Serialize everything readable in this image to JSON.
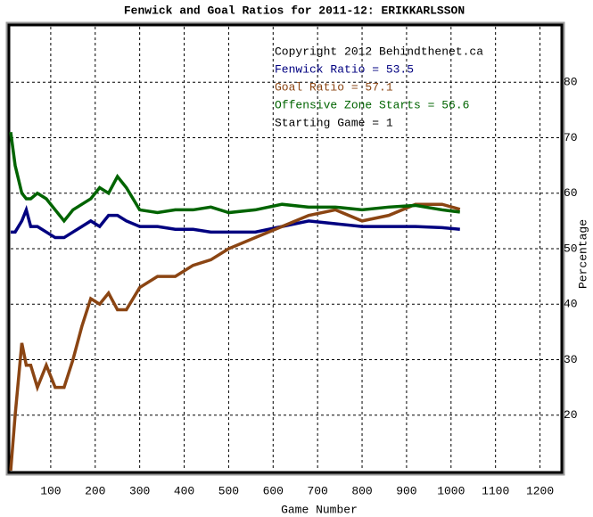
{
  "chart_data": {
    "type": "line",
    "title": "Fenwick and Goal Ratios for 2011-12: ERIKKARLSSON",
    "xlabel": "Game Number",
    "ylabel": "Percentage",
    "annotations": [
      {
        "text": "Copyright 2012 Behindthenet.ca",
        "color": "#000000"
      },
      {
        "text": "Fenwick Ratio = 53.5",
        "color": "#000080"
      },
      {
        "text": "Goal Ratio = 57.1",
        "color": "#8b4513"
      },
      {
        "text": "Offensive Zone Starts = 56.6",
        "color": "#006400"
      },
      {
        "text": "Starting Game = 1",
        "color": "#000000"
      }
    ],
    "x": [
      10,
      20,
      35,
      45,
      55,
      70,
      90,
      110,
      130,
      150,
      170,
      190,
      210,
      230,
      250,
      270,
      300,
      340,
      380,
      420,
      460,
      500,
      560,
      620,
      680,
      740,
      800,
      860,
      920,
      980,
      1020
    ],
    "series": [
      {
        "name": "Fenwick Ratio",
        "color": "#000080",
        "values": [
          53,
          53,
          55,
          57,
          54,
          54,
          53,
          52,
          52,
          53,
          54,
          55,
          54,
          56,
          56,
          55,
          54,
          54,
          53.5,
          53.5,
          53,
          53,
          53,
          54,
          55,
          54.5,
          54,
          54,
          54,
          53.8,
          53.5
        ]
      },
      {
        "name": "Goal Ratio",
        "color": "#8b4513",
        "values": [
          10,
          20,
          33,
          29,
          29,
          25,
          29,
          25,
          25,
          30,
          36,
          41,
          40,
          42,
          39,
          39,
          43,
          45,
          45,
          47,
          48,
          50,
          52,
          54,
          56,
          57,
          55,
          56,
          58,
          58,
          57.1
        ]
      },
      {
        "name": "Offensive Zone Starts",
        "color": "#006400",
        "values": [
          71,
          65,
          60,
          59,
          59,
          60,
          59,
          57,
          55,
          57,
          58,
          59,
          61,
          60,
          63,
          61,
          57,
          56.5,
          57,
          57,
          57.5,
          56.5,
          57,
          58,
          57.5,
          57.5,
          57,
          57.5,
          57.8,
          57,
          56.6
        ]
      }
    ],
    "xlim": [
      10,
      1245
    ],
    "ylim": [
      10,
      90
    ],
    "xticks": [
      100,
      200,
      300,
      400,
      500,
      600,
      700,
      800,
      900,
      1000,
      1100,
      1200
    ],
    "yticks": [
      20,
      30,
      40,
      50,
      60,
      70,
      80
    ],
    "grid": true
  }
}
